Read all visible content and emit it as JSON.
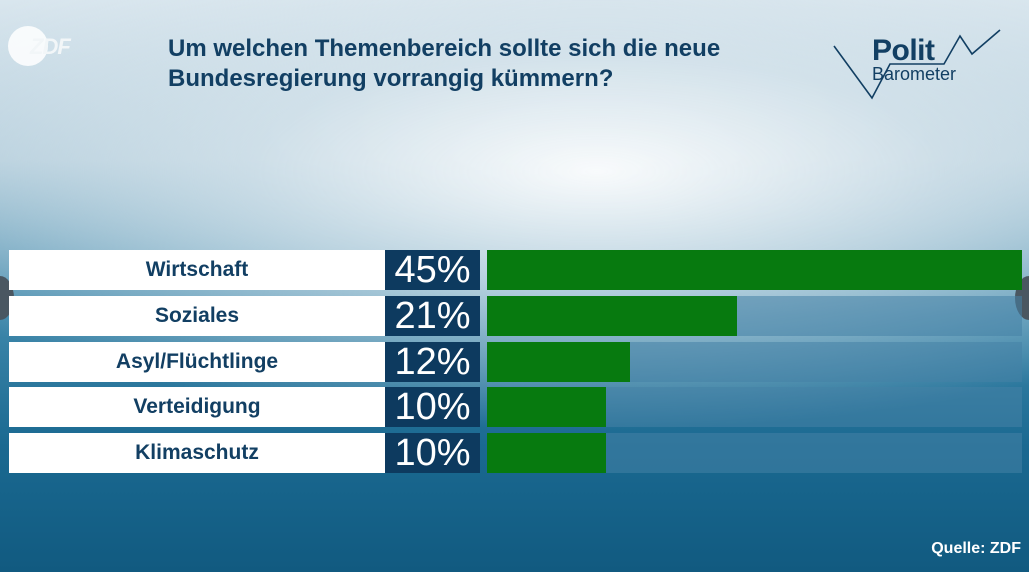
{
  "header": {
    "broadcaster_logo": "ZDF",
    "title": "Um welchen Themenbereich sollte sich die neue Bundesregierung vorrangig kümmern?",
    "brand_line1": "Polit",
    "brand_line2": "Barometer"
  },
  "chart_data": {
    "type": "bar",
    "orientation": "horizontal",
    "title": "Um welchen Themenbereich sollte sich die neue Bundesregierung vorrangig kümmern?",
    "categories": [
      "Wirtschaft",
      "Soziales",
      "Asyl/Flüchtlinge",
      "Verteidigung",
      "Klimaschutz"
    ],
    "values": [
      45,
      21,
      12,
      10,
      10
    ],
    "value_labels": [
      "45%",
      "21%",
      "12%",
      "10%",
      "10%"
    ],
    "unit": "%",
    "xlim": [
      0,
      45
    ],
    "bar_color": "#077a0f"
  },
  "footer": {
    "source": "Quelle: ZDF"
  },
  "colors": {
    "title": "#123f63",
    "pct_box": "#0d3a5f",
    "bar": "#077a0f"
  }
}
